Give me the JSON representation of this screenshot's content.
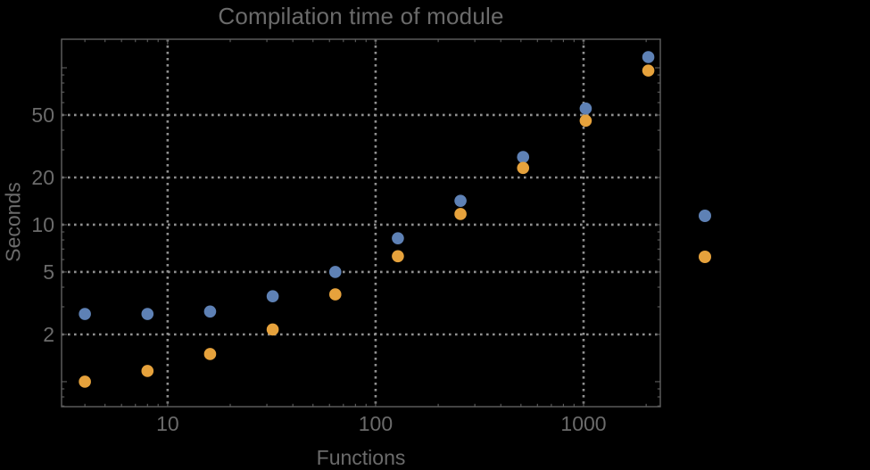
{
  "figure": {
    "background": "#000000"
  },
  "chart_data": {
    "type": "scatter",
    "title": "Compilation time of module",
    "xlabel": "Functions",
    "ylabel": "Seconds",
    "xscale": "log",
    "yscale": "log",
    "xlim": [
      3.09,
      2339
    ],
    "ylim": [
      0.693,
      152
    ],
    "grid": true,
    "grid_style": "dotted",
    "x_ticks": [
      {
        "value": 10,
        "label": "10"
      },
      {
        "value": 100,
        "label": "100"
      },
      {
        "value": 1000,
        "label": "1000"
      }
    ],
    "y_ticks": [
      {
        "value": 2,
        "label": "2"
      },
      {
        "value": 5,
        "label": "5"
      },
      {
        "value": 10,
        "label": "10"
      },
      {
        "value": 20,
        "label": "20"
      },
      {
        "value": 50,
        "label": "50"
      }
    ],
    "x": [
      4,
      8,
      16,
      32,
      64,
      128,
      256,
      512,
      1024,
      2048
    ],
    "series": [
      {
        "name": "blue",
        "color": "#5E81B5",
        "values": [
          2.7,
          2.7,
          2.8,
          3.5,
          5.0,
          8.2,
          14.2,
          27,
          55,
          117
        ]
      },
      {
        "name": "orange",
        "color": "#E6A23C",
        "values": [
          1.0,
          1.17,
          1.5,
          2.15,
          3.6,
          6.3,
          11.7,
          23,
          46,
          96
        ]
      }
    ],
    "legend": {
      "position": "right-outside",
      "entries": [
        {
          "series": "blue",
          "color": "#5E81B5"
        },
        {
          "series": "orange",
          "color": "#E6A23C"
        }
      ]
    }
  },
  "style_colors": {
    "frame": "#606060",
    "grid": "#8f8f8f",
    "text": "#6b6b6b",
    "background": "#000000"
  }
}
